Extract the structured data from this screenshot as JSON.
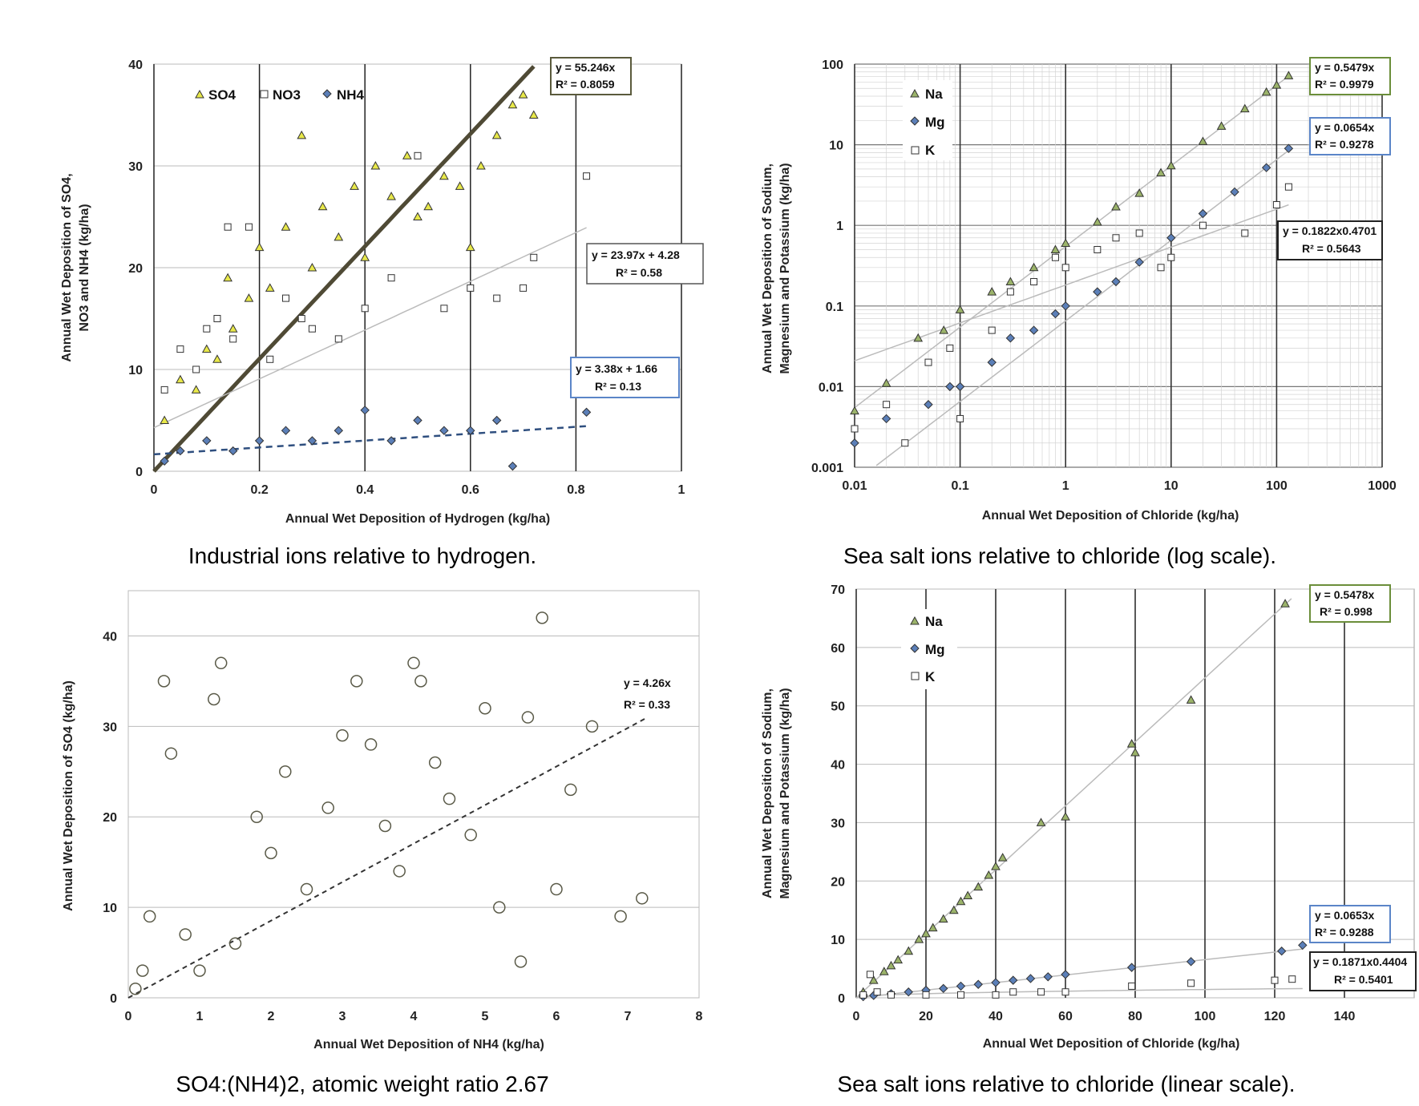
{
  "chart_data": [
    {
      "type": "scatter",
      "xlabel": "Annual Wet Deposition of Hydrogen (kg/ha)",
      "ylabel": [
        "Annual Wet  Deposition of SO4,",
        "NO3 and NH4 (kg/ha)"
      ],
      "xlim": [
        0,
        1
      ],
      "ylim": [
        0,
        40
      ],
      "xticks": [
        "0",
        "0.2",
        "0.4",
        "0.6",
        "0.8",
        "1"
      ],
      "yticks": [
        "0",
        "10",
        "20",
        "30",
        "40"
      ],
      "grid": "on",
      "legend": "top-left",
      "caption": "Industrial ions relative to hydrogen.",
      "series": [
        {
          "name": "SO4",
          "marker": "triangle",
          "color": "#e8e84a",
          "slope": 55.246,
          "intercept": 0,
          "x": [
            0.02,
            0.05,
            0.08,
            0.1,
            0.12,
            0.14,
            0.15,
            0.18,
            0.2,
            0.22,
            0.25,
            0.28,
            0.3,
            0.32,
            0.35,
            0.38,
            0.4,
            0.42,
            0.45,
            0.48,
            0.5,
            0.52,
            0.55,
            0.58,
            0.6,
            0.62,
            0.65,
            0.68,
            0.7,
            0.72
          ],
          "y": [
            5,
            9,
            8,
            12,
            11,
            19,
            14,
            17,
            22,
            18,
            24,
            33,
            20,
            26,
            23,
            28,
            21,
            30,
            27,
            31,
            25,
            26,
            29,
            28,
            22,
            30,
            33,
            36,
            37,
            35
          ]
        },
        {
          "name": "NO3",
          "marker": "square",
          "color": "#ffffff",
          "slope": 23.97,
          "intercept": 4.28,
          "x": [
            0.02,
            0.05,
            0.08,
            0.1,
            0.12,
            0.14,
            0.15,
            0.18,
            0.22,
            0.25,
            0.28,
            0.3,
            0.35,
            0.4,
            0.45,
            0.5,
            0.55,
            0.6,
            0.65,
            0.7,
            0.72,
            0.82
          ],
          "y": [
            8,
            12,
            10,
            14,
            15,
            24,
            13,
            24,
            11,
            17,
            15,
            14,
            13,
            16,
            19,
            31,
            16,
            18,
            17,
            18,
            21,
            29
          ]
        },
        {
          "name": "NH4",
          "marker": "diamond",
          "color": "#5b7fb8",
          "slope": 3.38,
          "intercept": 1.66,
          "x": [
            0.02,
            0.05,
            0.1,
            0.15,
            0.2,
            0.25,
            0.3,
            0.35,
            0.4,
            0.45,
            0.5,
            0.55,
            0.6,
            0.65,
            0.68,
            0.82
          ],
          "y": [
            1,
            2,
            3,
            2,
            3,
            4,
            3,
            4,
            6,
            3,
            5,
            4,
            4,
            5,
            0.5,
            5.8
          ]
        }
      ],
      "equations": [
        {
          "lines": [
            "y = 55.246x",
            "R² = 0.8059"
          ],
          "border": "#5a5a3c"
        },
        {
          "lines": [
            "y = 23.97x + 4.28",
            "R² = 0.58"
          ],
          "border": "#555555"
        },
        {
          "lines": [
            "y = 3.38x + 1.66",
            "R² = 0.13"
          ],
          "border": "#5b85c8"
        }
      ]
    },
    {
      "type": "scatter",
      "xscale": "log",
      "yscale": "log",
      "xlabel": "Annual Wet Deposition of Chloride (kg/ha)",
      "ylabel": [
        "Annual Wet  Deposition of Sodium,",
        "Magnesium and Potassium (kg/ha)"
      ],
      "xlim": [
        0.01,
        1000
      ],
      "ylim": [
        0.001,
        100
      ],
      "xticks": [
        "0.01",
        "0.1",
        "1",
        "10",
        "100",
        "1000"
      ],
      "yticks": [
        "0.001",
        "0.01",
        "0.1",
        "1",
        "10",
        "100"
      ],
      "grid": "on",
      "legend": "top-left",
      "caption": "Sea salt ions relative to chloride (log scale).",
      "series": [
        {
          "name": "Na",
          "marker": "triangle",
          "color": "#9bb36a",
          "slope": 0.5479,
          "fit": "linear",
          "x": [
            0.01,
            0.02,
            0.04,
            0.07,
            0.1,
            0.2,
            0.3,
            0.5,
            0.8,
            1,
            2,
            3,
            5,
            8,
            10,
            20,
            30,
            50,
            80,
            100,
            130
          ],
          "y": [
            0.005,
            0.011,
            0.04,
            0.05,
            0.09,
            0.15,
            0.2,
            0.3,
            0.5,
            0.6,
            1.1,
            1.7,
            2.5,
            4.5,
            5.5,
            11,
            17,
            28,
            45,
            55,
            72
          ]
        },
        {
          "name": "Mg",
          "marker": "diamond",
          "color": "#5b7fb8",
          "slope": 0.0654,
          "fit": "linear",
          "x": [
            0.01,
            0.02,
            0.05,
            0.08,
            0.1,
            0.2,
            0.3,
            0.5,
            0.8,
            1,
            2,
            3,
            5,
            10,
            20,
            40,
            80,
            130
          ],
          "y": [
            0.002,
            0.004,
            0.006,
            0.01,
            0.01,
            0.02,
            0.04,
            0.05,
            0.08,
            0.1,
            0.15,
            0.2,
            0.35,
            0.7,
            1.4,
            2.6,
            5.2,
            9
          ]
        },
        {
          "name": "K",
          "marker": "square",
          "color": "#ffffff",
          "coef": 0.1822,
          "exponent": 0.4701,
          "fit": "power",
          "x": [
            0.01,
            0.02,
            0.03,
            0.05,
            0.08,
            0.1,
            0.2,
            0.3,
            0.5,
            0.8,
            1,
            2,
            3,
            5,
            8,
            10,
            20,
            50,
            100,
            130
          ],
          "y": [
            0.003,
            0.006,
            0.002,
            0.02,
            0.03,
            0.004,
            0.05,
            0.15,
            0.2,
            0.4,
            0.3,
            0.5,
            0.7,
            0.8,
            0.3,
            0.4,
            1,
            0.8,
            1.8,
            3
          ]
        }
      ],
      "equations": [
        {
          "lines": [
            "y = 0.5479x",
            "R² = 0.9979"
          ],
          "border": "#6b8e3a"
        },
        {
          "lines": [
            "y = 0.0654x",
            "R² = 0.9278"
          ],
          "border": "#5b85c8"
        },
        {
          "lines": [
            "y = 0.1822x0.4701",
            "R² = 0.5643"
          ],
          "border": "#222222"
        }
      ]
    },
    {
      "type": "scatter",
      "xlabel": "Annual Wet Deposition of NH4 (kg/ha)",
      "ylabel": [
        "Annual Wet Deposition of SO4 (kg/ha)"
      ],
      "xlim": [
        0,
        8
      ],
      "ylim": [
        0,
        45
      ],
      "xticks": [
        "0",
        "1",
        "2",
        "3",
        "4",
        "5",
        "6",
        "7",
        "8"
      ],
      "yticks": [
        "0",
        "10",
        "20",
        "30",
        "40"
      ],
      "grid": "on",
      "caption": "SO4:(NH4)2, atomic weight ratio 2.67",
      "series": [
        {
          "name": "",
          "marker": "circle",
          "color": "#5a5a48",
          "slope": 4.26,
          "x": [
            0.1,
            0.2,
            0.3,
            0.5,
            0.6,
            0.8,
            1,
            1.2,
            1.3,
            1.5,
            1.8,
            2,
            2.2,
            2.5,
            2.8,
            3,
            3.2,
            3.4,
            3.6,
            3.8,
            4,
            4.1,
            4.3,
            4.5,
            4.8,
            5,
            5.2,
            5.5,
            5.6,
            5.8,
            6,
            6.2,
            6.5,
            6.9,
            7.2
          ],
          "y": [
            1,
            3,
            9,
            35,
            27,
            7,
            3,
            33,
            37,
            6,
            20,
            16,
            25,
            12,
            21,
            29,
            35,
            28,
            19,
            14,
            37,
            35,
            26,
            22,
            18,
            32,
            10,
            4,
            31,
            42,
            12,
            23,
            30,
            9,
            11
          ]
        }
      ],
      "equations": [
        {
          "lines": [
            "y = 4.26x",
            "R² = 0.33"
          ],
          "border": "none"
        }
      ]
    },
    {
      "type": "scatter",
      "xlabel": "Annual Wet Deposition of Chloride (kg/ha)",
      "ylabel": [
        "Annual Wet  Deposition of Sodium,",
        "Magnesium and Potassium (kg/ha)"
      ],
      "xlim": [
        0,
        160
      ],
      "ylim": [
        0,
        70
      ],
      "xticks": [
        "0",
        "20",
        "40",
        "60",
        "80",
        "100",
        "120",
        "140"
      ],
      "yticks": [
        "0",
        "10",
        "20",
        "30",
        "40",
        "50",
        "60",
        "70"
      ],
      "grid": "on",
      "legend": "top-left",
      "caption": "Sea salt ions relative to chloride (linear scale).",
      "series": [
        {
          "name": "Na",
          "marker": "triangle",
          "color": "#9bb36a",
          "slope": 0.5478,
          "fit": "linear",
          "x": [
            2,
            5,
            8,
            10,
            12,
            15,
            18,
            20,
            22,
            25,
            28,
            30,
            32,
            35,
            38,
            40,
            42,
            53,
            60,
            79,
            80,
            96,
            123
          ],
          "y": [
            1,
            3,
            4.5,
            5.5,
            6.5,
            8,
            10,
            11,
            12,
            13.5,
            15,
            16.5,
            17.5,
            19,
            21,
            22.5,
            24,
            30,
            31,
            43.5,
            42,
            51,
            67.5
          ]
        },
        {
          "name": "Mg",
          "marker": "diamond",
          "color": "#5b7fb8",
          "slope": 0.0653,
          "fit": "linear",
          "x": [
            2,
            5,
            10,
            15,
            20,
            25,
            30,
            35,
            40,
            45,
            50,
            55,
            60,
            79,
            96,
            122,
            128
          ],
          "y": [
            0.2,
            0.4,
            0.7,
            1,
            1.3,
            1.6,
            2,
            2.3,
            2.6,
            3,
            3.3,
            3.6,
            4,
            5.2,
            6.2,
            8,
            9
          ]
        },
        {
          "name": "K",
          "marker": "square",
          "color": "#ffffff",
          "coef": 0.1871,
          "exponent": 0.4404,
          "fit": "power",
          "x": [
            2,
            4,
            6,
            10,
            20,
            30,
            40,
            45,
            53,
            60,
            79,
            96,
            120,
            125
          ],
          "y": [
            0.5,
            4,
            1,
            0.5,
            0.5,
            0.5,
            0.5,
            1,
            1,
            1,
            2,
            2.5,
            3,
            3.2
          ]
        }
      ],
      "equations": [
        {
          "lines": [
            "y = 0.5478x",
            "R² = 0.998"
          ],
          "border": "#6b8e3a"
        },
        {
          "lines": [
            "y = 0.0653x",
            "R² = 0.9288"
          ],
          "border": "#5b85c8"
        },
        {
          "lines": [
            "y = 0.1871x0.4404",
            "R² = 0.5401"
          ],
          "border": "#222222"
        }
      ]
    }
  ]
}
